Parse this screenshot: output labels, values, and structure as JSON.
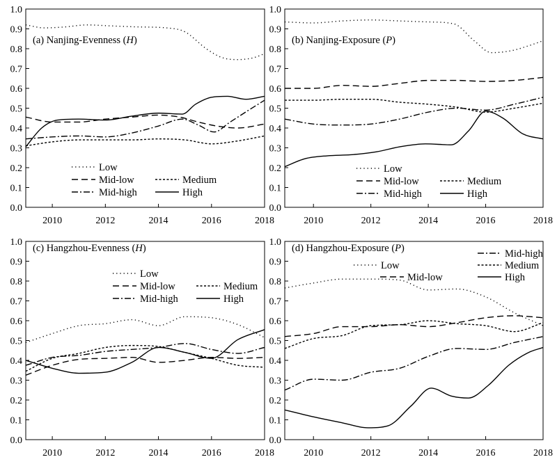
{
  "styles": {
    "Low": "1.2 4",
    "Mid-low": "9 5",
    "Medium": "3 2.5",
    "Mid-high": "9 3 2 3",
    "High": ""
  },
  "chart_data": [
    {
      "type": "line",
      "id": "a",
      "title_prefix": "(a) Nanjing-Evenness (",
      "title_var": "H",
      "title_suffix": ")",
      "xlim": [
        2009,
        2018
      ],
      "ylim": [
        0,
        1
      ],
      "xticks": [
        2010,
        2012,
        2014,
        2016,
        2018
      ],
      "yticks": [
        0.0,
        0.1,
        0.2,
        0.3,
        0.4,
        0.5,
        0.6,
        0.7,
        0.8,
        0.9,
        1.0
      ],
      "legend_position": "lower-center",
      "series": [
        {
          "name": "Low",
          "x": [
            2009,
            2009.7,
            2010.5,
            2011.3,
            2012.2,
            2013.2,
            2014.3,
            2015.0,
            2015.8,
            2016.4,
            2017.0,
            2017.6,
            2018
          ],
          "y": [
            0.92,
            0.905,
            0.91,
            0.92,
            0.915,
            0.91,
            0.905,
            0.885,
            0.8,
            0.755,
            0.745,
            0.755,
            0.775
          ]
        },
        {
          "name": "Mid-low",
          "x": [
            2009,
            2010,
            2011,
            2012,
            2013,
            2014,
            2014.8,
            2015.5,
            2016.2,
            2017,
            2018
          ],
          "y": [
            0.455,
            0.43,
            0.43,
            0.445,
            0.455,
            0.465,
            0.455,
            0.43,
            0.41,
            0.4,
            0.42
          ]
        },
        {
          "name": "Medium",
          "x": [
            2009,
            2010,
            2011,
            2012,
            2013,
            2014,
            2015,
            2016,
            2017,
            2018
          ],
          "y": [
            0.31,
            0.33,
            0.34,
            0.34,
            0.34,
            0.345,
            0.34,
            0.32,
            0.335,
            0.36
          ]
        },
        {
          "name": "Mid-high",
          "x": [
            2009,
            2010,
            2011,
            2012,
            2013,
            2014,
            2014.9,
            2015.5,
            2016.1,
            2016.7,
            2017.4,
            2018
          ],
          "y": [
            0.345,
            0.355,
            0.36,
            0.355,
            0.375,
            0.41,
            0.445,
            0.415,
            0.38,
            0.43,
            0.49,
            0.54
          ]
        },
        {
          "name": "High",
          "x": [
            2009,
            2009.6,
            2010.2,
            2011,
            2012,
            2013,
            2014,
            2014.9,
            2015.4,
            2016,
            2016.6,
            2017.3,
            2018
          ],
          "y": [
            0.305,
            0.4,
            0.44,
            0.445,
            0.44,
            0.46,
            0.475,
            0.47,
            0.52,
            0.555,
            0.56,
            0.545,
            0.56
          ]
        }
      ]
    },
    {
      "type": "line",
      "id": "b",
      "title_prefix": "(b) Nanjing-Exposure (",
      "title_var": "P",
      "title_suffix": ")",
      "xlim": [
        2009,
        2018
      ],
      "ylim": [
        0,
        1
      ],
      "xticks": [
        2010,
        2012,
        2014,
        2016,
        2018
      ],
      "yticks": [
        0.0,
        0.1,
        0.2,
        0.3,
        0.4,
        0.5,
        0.6,
        0.7,
        0.8,
        0.9,
        1.0
      ],
      "legend_position": "lower-center",
      "series": [
        {
          "name": "Low",
          "x": [
            2009,
            2010,
            2011,
            2012,
            2013,
            2014,
            2014.9,
            2015.6,
            2016.2,
            2016.9,
            2017.5,
            2018
          ],
          "y": [
            0.935,
            0.93,
            0.94,
            0.945,
            0.94,
            0.935,
            0.925,
            0.84,
            0.78,
            0.79,
            0.815,
            0.84
          ]
        },
        {
          "name": "Mid-low",
          "x": [
            2009,
            2010,
            2011,
            2012,
            2013,
            2014,
            2015,
            2016,
            2017,
            2018
          ],
          "y": [
            0.6,
            0.6,
            0.615,
            0.61,
            0.625,
            0.64,
            0.64,
            0.635,
            0.64,
            0.655
          ]
        },
        {
          "name": "Medium",
          "x": [
            2009,
            2010,
            2011,
            2012,
            2013,
            2014,
            2015,
            2016,
            2017,
            2018
          ],
          "y": [
            0.54,
            0.54,
            0.545,
            0.545,
            0.53,
            0.52,
            0.505,
            0.48,
            0.5,
            0.525
          ]
        },
        {
          "name": "Mid-high",
          "x": [
            2009,
            2010,
            2011,
            2012,
            2013,
            2014,
            2015,
            2016,
            2017,
            2018
          ],
          "y": [
            0.445,
            0.42,
            0.415,
            0.42,
            0.445,
            0.48,
            0.5,
            0.49,
            0.52,
            0.555
          ]
        },
        {
          "name": "High",
          "x": [
            2009,
            2009.7,
            2010.5,
            2011.3,
            2012.2,
            2013,
            2013.9,
            2014.8,
            2015.4,
            2016.0,
            2016.6,
            2017.3,
            2018
          ],
          "y": [
            0.205,
            0.245,
            0.26,
            0.265,
            0.28,
            0.305,
            0.32,
            0.315,
            0.385,
            0.485,
            0.45,
            0.37,
            0.345
          ]
        }
      ]
    },
    {
      "type": "line",
      "id": "c",
      "title_prefix": "(c) Hangzhou-Evenness (",
      "title_var": "H",
      "title_suffix": ")",
      "xlim": [
        2009,
        2018
      ],
      "ylim": [
        0,
        1
      ],
      "xticks": [
        2010,
        2012,
        2014,
        2016,
        2018
      ],
      "yticks": [
        0.0,
        0.1,
        0.2,
        0.3,
        0.4,
        0.5,
        0.6,
        0.7,
        0.8,
        0.9,
        1.0
      ],
      "legend_position": "upper-center",
      "series": [
        {
          "name": "Low",
          "x": [
            2009,
            2010,
            2011,
            2012,
            2013,
            2014,
            2015,
            2016,
            2017,
            2018
          ],
          "y": [
            0.49,
            0.535,
            0.575,
            0.585,
            0.605,
            0.575,
            0.62,
            0.615,
            0.58,
            0.515
          ]
        },
        {
          "name": "Mid-low",
          "x": [
            2009,
            2010,
            2011,
            2012,
            2013,
            2014,
            2015,
            2016,
            2017,
            2018
          ],
          "y": [
            0.325,
            0.375,
            0.405,
            0.41,
            0.415,
            0.39,
            0.4,
            0.415,
            0.41,
            0.415
          ]
        },
        {
          "name": "Medium",
          "x": [
            2009,
            2010,
            2011,
            2012,
            2013,
            2014,
            2015,
            2016,
            2017,
            2018
          ],
          "y": [
            0.345,
            0.41,
            0.435,
            0.465,
            0.475,
            0.47,
            0.44,
            0.41,
            0.375,
            0.365
          ]
        },
        {
          "name": "Mid-high",
          "x": [
            2009,
            2010,
            2011,
            2012,
            2013,
            2014,
            2015,
            2016,
            2017,
            2018
          ],
          "y": [
            0.375,
            0.415,
            0.425,
            0.445,
            0.455,
            0.465,
            0.485,
            0.455,
            0.435,
            0.465
          ]
        },
        {
          "name": "High",
          "x": [
            2009,
            2010,
            2011,
            2012,
            2013,
            2014,
            2015,
            2016,
            2017,
            2018
          ],
          "y": [
            0.4,
            0.36,
            0.335,
            0.34,
            0.39,
            0.465,
            0.44,
            0.41,
            0.505,
            0.555
          ]
        }
      ]
    },
    {
      "type": "line",
      "id": "d",
      "title_prefix": "(d) Hangzhou-Exposure (",
      "title_var": "P",
      "title_suffix": ")",
      "xlim": [
        2009,
        2018
      ],
      "ylim": [
        0,
        1
      ],
      "xticks": [
        2010,
        2012,
        2014,
        2016,
        2018
      ],
      "yticks": [
        0.0,
        0.1,
        0.2,
        0.3,
        0.4,
        0.5,
        0.6,
        0.7,
        0.8,
        0.9,
        1.0
      ],
      "legend_position": "upper-center",
      "series": [
        {
          "name": "Low",
          "x": [
            2009,
            2010,
            2011,
            2012,
            2013,
            2014,
            2015,
            2016,
            2017,
            2018
          ],
          "y": [
            0.765,
            0.79,
            0.81,
            0.81,
            0.805,
            0.755,
            0.76,
            0.72,
            0.64,
            0.575
          ]
        },
        {
          "name": "Mid-low",
          "x": [
            2009,
            2010,
            2011,
            2012,
            2013,
            2014,
            2015,
            2016,
            2017,
            2018
          ],
          "y": [
            0.52,
            0.535,
            0.57,
            0.57,
            0.58,
            0.57,
            0.59,
            0.615,
            0.625,
            0.615
          ]
        },
        {
          "name": "Medium",
          "x": [
            2009,
            2010,
            2011,
            2012,
            2013,
            2014,
            2015,
            2016,
            2017,
            2018
          ],
          "y": [
            0.46,
            0.51,
            0.525,
            0.575,
            0.58,
            0.6,
            0.585,
            0.575,
            0.545,
            0.59
          ]
        },
        {
          "name": "Mid-high",
          "x": [
            2009,
            2010,
            2011,
            2012,
            2013,
            2014,
            2015,
            2016,
            2017,
            2018
          ],
          "y": [
            0.25,
            0.305,
            0.3,
            0.34,
            0.36,
            0.42,
            0.46,
            0.455,
            0.49,
            0.52
          ]
        },
        {
          "name": "High",
          "x": [
            2009,
            2010,
            2011,
            2011.9,
            2012.6,
            2013.4,
            2014.1,
            2014.8,
            2015.4,
            2016.1,
            2016.8,
            2017.5,
            2018
          ],
          "y": [
            0.15,
            0.115,
            0.085,
            0.06,
            0.07,
            0.17,
            0.26,
            0.22,
            0.21,
            0.275,
            0.375,
            0.44,
            0.465
          ]
        }
      ]
    }
  ]
}
